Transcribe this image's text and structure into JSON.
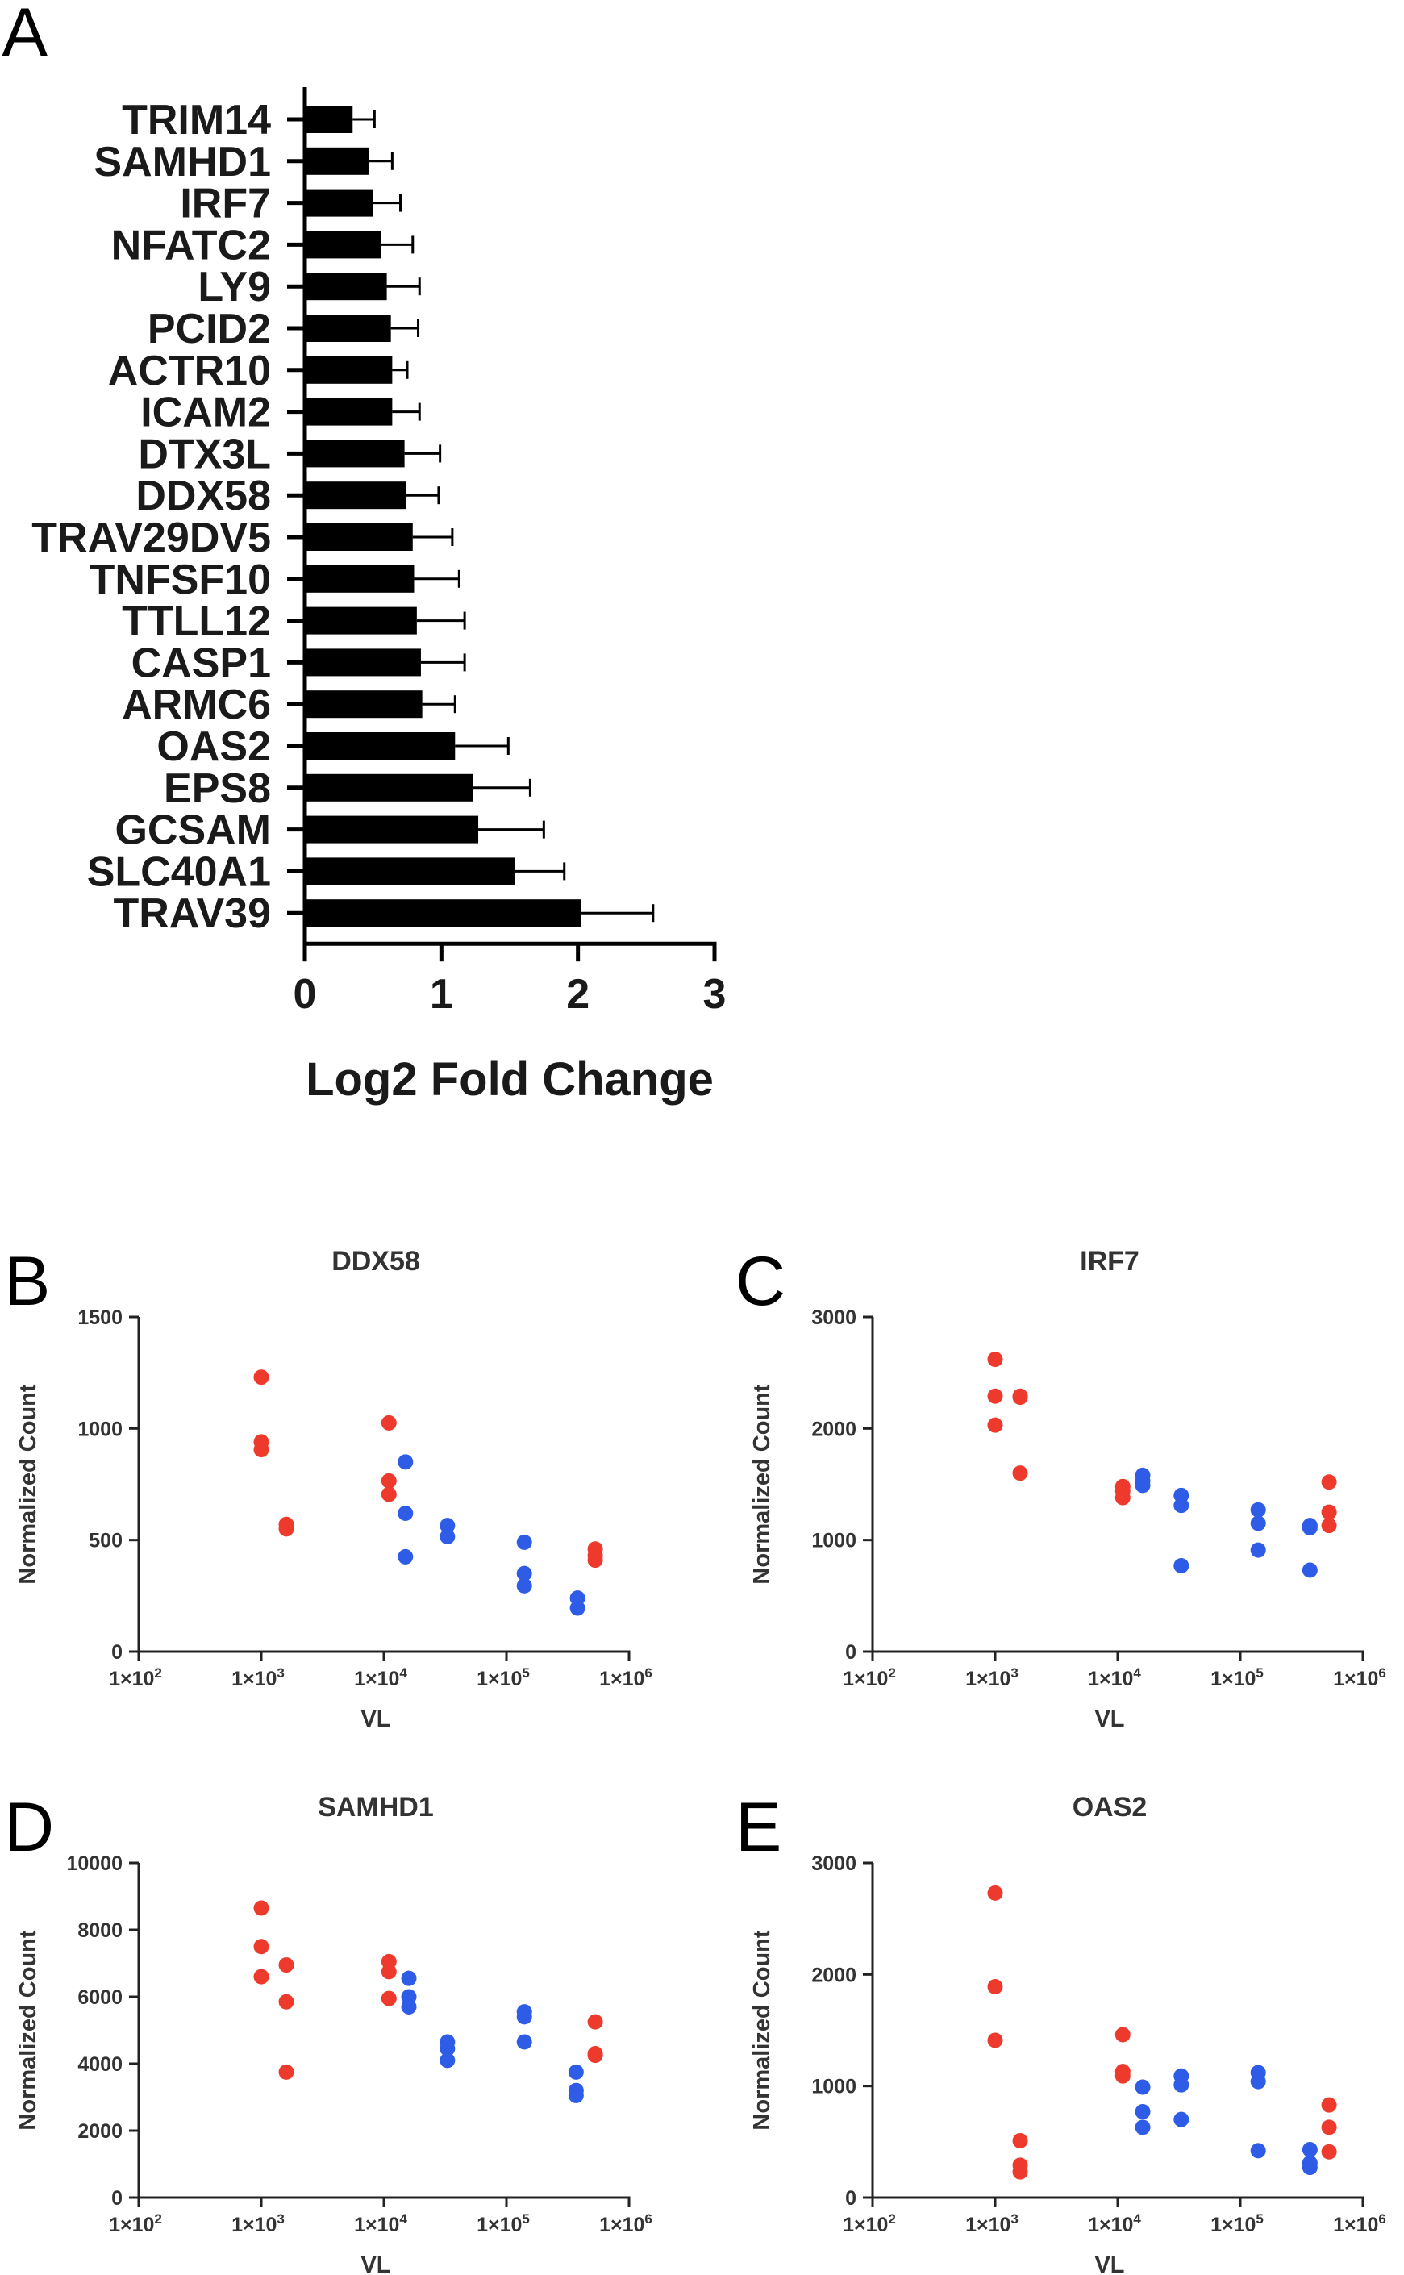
{
  "colors": {
    "bar": "#000000",
    "red": "#ee3a2c",
    "blue": "#2e5ce6",
    "axis": "#000000"
  },
  "chart_data": [
    {
      "panel": "A",
      "type": "bar",
      "orientation": "horizontal",
      "title": "",
      "xlabel": "Log2 Fold Change",
      "ylabel": "",
      "xlim": [
        0,
        3
      ],
      "xticks": [
        "0",
        "1",
        "2",
        "3"
      ],
      "categories": [
        "TRIM14",
        "SAMHD1",
        "IRF7",
        "NFATC2",
        "LY9",
        "PCID2",
        "ACTR10",
        "ICAM2",
        "DTX3L",
        "DDX58",
        "TRAV29DV5",
        "TNFSF10",
        "TTLL12",
        "CASP1",
        "ARMC6",
        "OAS2",
        "EPS8",
        "GCSAM",
        "SLC40A1",
        "TRAV39"
      ],
      "values": [
        0.35,
        0.47,
        0.5,
        0.56,
        0.6,
        0.63,
        0.64,
        0.64,
        0.73,
        0.74,
        0.79,
        0.8,
        0.82,
        0.85,
        0.86,
        1.1,
        1.23,
        1.27,
        1.54,
        2.02
      ],
      "errors": [
        0.16,
        0.17,
        0.2,
        0.23,
        0.24,
        0.2,
        0.11,
        0.2,
        0.26,
        0.24,
        0.29,
        0.33,
        0.35,
        0.32,
        0.24,
        0.39,
        0.42,
        0.48,
        0.36,
        0.53
      ]
    },
    {
      "panel": "B",
      "type": "scatter",
      "title": "DDX58",
      "xlabel": "VL",
      "ylabel": "Normalized Count",
      "xscale": "log",
      "xlim": [
        100,
        1000000
      ],
      "xticks": [
        "1×10^2",
        "1×10^3",
        "1×10^4",
        "1×10^5",
        "1×10^6"
      ],
      "ylim": [
        0,
        1500
      ],
      "yticks": [
        "0",
        "500",
        "1000",
        "1500"
      ],
      "series": [
        {
          "name": "red",
          "x": [
            1000,
            1000,
            1000,
            1600,
            1600,
            11000,
            11000,
            11000,
            530000,
            530000,
            530000
          ],
          "y": [
            1230,
            940,
            905,
            570,
            550,
            1025,
            765,
            705,
            460,
            430,
            410
          ]
        },
        {
          "name": "blue",
          "x": [
            15000,
            15000,
            15000,
            33000,
            33000,
            140000,
            140000,
            140000,
            380000,
            380000
          ],
          "y": [
            850,
            620,
            425,
            565,
            515,
            490,
            350,
            295,
            240,
            195
          ]
        }
      ]
    },
    {
      "panel": "C",
      "type": "scatter",
      "title": "IRF7",
      "xlabel": "VL",
      "ylabel": "Normalized Count",
      "xscale": "log",
      "xlim": [
        100,
        1000000
      ],
      "xticks": [
        "1×10^2",
        "1×10^3",
        "1×10^4",
        "1×10^5",
        "1×10^6"
      ],
      "ylim": [
        0,
        3000
      ],
      "yticks": [
        "0",
        "1000",
        "2000",
        "3000"
      ],
      "series": [
        {
          "name": "red",
          "x": [
            1000,
            1000,
            1000,
            1600,
            1600,
            1600,
            11000,
            11000,
            11000,
            530000,
            530000,
            530000
          ],
          "y": [
            2620,
            2290,
            2030,
            2290,
            2280,
            1600,
            1480,
            1440,
            1380,
            1520,
            1250,
            1130
          ]
        },
        {
          "name": "blue",
          "x": [
            16000,
            16000,
            16000,
            33000,
            33000,
            33000,
            140000,
            140000,
            140000,
            370000,
            370000,
            370000
          ],
          "y": [
            1580,
            1530,
            1490,
            1400,
            1310,
            770,
            1270,
            1150,
            910,
            1130,
            1110,
            730
          ]
        }
      ]
    },
    {
      "panel": "D",
      "type": "scatter",
      "title": "SAMHD1",
      "xlabel": "VL",
      "ylabel": "Normalized Count",
      "xscale": "log",
      "xlim": [
        100,
        1000000
      ],
      "xticks": [
        "1×10^2",
        "1×10^3",
        "1×10^4",
        "1×10^5",
        "1×10^6"
      ],
      "ylim": [
        0,
        10000
      ],
      "yticks": [
        "0",
        "2000",
        "4000",
        "6000",
        "8000",
        "10000"
      ],
      "series": [
        {
          "name": "red",
          "x": [
            1000,
            1000,
            1000,
            1600,
            1600,
            1600,
            11000,
            11000,
            11000,
            530000,
            530000,
            530000
          ],
          "y": [
            8650,
            7500,
            6600,
            6950,
            5850,
            3750,
            7050,
            6750,
            5950,
            5250,
            4300,
            4250
          ]
        },
        {
          "name": "blue",
          "x": [
            16000,
            16000,
            16000,
            33000,
            33000,
            33000,
            140000,
            140000,
            140000,
            370000,
            370000,
            370000
          ],
          "y": [
            6550,
            6000,
            5700,
            4650,
            4450,
            4100,
            5550,
            5400,
            4650,
            3750,
            3200,
            3050
          ]
        }
      ]
    },
    {
      "panel": "E",
      "type": "scatter",
      "title": "OAS2",
      "xlabel": "VL",
      "ylabel": "Normalized Count",
      "xscale": "log",
      "xlim": [
        100,
        1000000
      ],
      "xticks": [
        "1×10^2",
        "1×10^3",
        "1×10^4",
        "1×10^5",
        "1×10^6"
      ],
      "ylim": [
        0,
        3000
      ],
      "yticks": [
        "0",
        "1000",
        "2000",
        "3000"
      ],
      "series": [
        {
          "name": "red",
          "x": [
            1000,
            1000,
            1000,
            1600,
            1600,
            1600,
            11000,
            11000,
            11000,
            530000,
            530000,
            530000
          ],
          "y": [
            2730,
            1890,
            1410,
            510,
            290,
            230,
            1460,
            1130,
            1090,
            830,
            630,
            410
          ]
        },
        {
          "name": "blue",
          "x": [
            16000,
            16000,
            16000,
            33000,
            33000,
            33000,
            140000,
            140000,
            140000,
            370000,
            370000,
            370000
          ],
          "y": [
            990,
            770,
            630,
            1090,
            1010,
            700,
            1120,
            1040,
            420,
            430,
            310,
            270
          ]
        }
      ]
    }
  ]
}
